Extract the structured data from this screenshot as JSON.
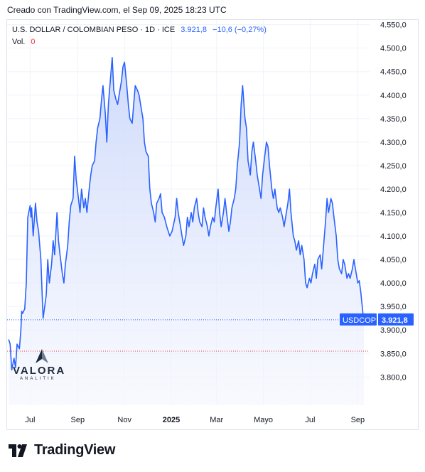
{
  "header": {
    "created_text": "Creado con TradingView.com, el Sep 09, 2025 18:23 UTC"
  },
  "legend": {
    "symbol_text": "U.S. DOLLAR / COLOMBIAN PESO · 1D · ICE",
    "last_value": "3.921,8",
    "change": "−10,6 (−0,27%)",
    "volume_label": "Vol.",
    "volume_value": "0"
  },
  "price_tag": {
    "ticker": "USDCOP",
    "value": "3.921,8",
    "color": "#2962ff"
  },
  "watermark": {
    "name": "VALORA",
    "sub": "ANALITIK"
  },
  "footer": {
    "brand": "TradingView"
  },
  "colors": {
    "line": "#2962ff",
    "area_top": "#c9d6fb",
    "area_bottom": "#f4f6fe",
    "last_price_line": "#2962ff",
    "red_dotted": "#f23645"
  },
  "chart_data": {
    "type": "area",
    "title": "U.S. DOLLAR / COLOMBIAN PESO · 1D · ICE",
    "xlabel": "",
    "ylabel": "",
    "ylim": [
      3740,
      4560
    ],
    "y_ticks": [
      3800,
      3850,
      3900,
      3950,
      4000,
      4050,
      4100,
      4150,
      4200,
      4250,
      4300,
      4350,
      4400,
      4450,
      4500,
      4550
    ],
    "y_tick_labels": [
      "3.800,0",
      "3.850,0",
      "3.900,0",
      "3.950,0",
      "4.000,0",
      "4.050,0",
      "4.100,0",
      "4.150,0",
      "4.200,0",
      "4.250,0",
      "4.300,0",
      "4.350,0",
      "4.400,0",
      "4.450,0",
      "4.500,0",
      "4.550,0"
    ],
    "x_range": [
      "2024-06-01",
      "2025-09-09"
    ],
    "x_ticks": [
      {
        "label": "Jul",
        "date": "2024-07-01",
        "bold": false
      },
      {
        "label": "Sep",
        "date": "2024-09-01",
        "bold": false
      },
      {
        "label": "Nov",
        "date": "2024-11-01",
        "bold": false
      },
      {
        "label": "2025",
        "date": "2025-01-01",
        "bold": true
      },
      {
        "label": "Mar",
        "date": "2025-03-01",
        "bold": false
      },
      {
        "label": "Mayo",
        "date": "2025-05-01",
        "bold": false
      },
      {
        "label": "Jul",
        "date": "2025-07-01",
        "bold": false
      },
      {
        "label": "Sep",
        "date": "2025-09-01",
        "bold": false
      }
    ],
    "red_reference_level": 3855,
    "series": [
      {
        "values": [
          [
            "2024-06-03",
            3880
          ],
          [
            "2024-06-05",
            3870
          ],
          [
            "2024-06-07",
            3815
          ],
          [
            "2024-06-10",
            3840
          ],
          [
            "2024-06-12",
            3820
          ],
          [
            "2024-06-14",
            3870
          ],
          [
            "2024-06-17",
            3860
          ],
          [
            "2024-06-19",
            3900
          ],
          [
            "2024-06-20",
            3940
          ],
          [
            "2024-06-21",
            3935
          ],
          [
            "2024-06-24",
            3945
          ],
          [
            "2024-06-26",
            4000
          ],
          [
            "2024-06-28",
            4140
          ],
          [
            "2024-07-01",
            4165
          ],
          [
            "2024-07-02",
            4140
          ],
          [
            "2024-07-03",
            4160
          ],
          [
            "2024-07-05",
            4100
          ],
          [
            "2024-07-08",
            4170
          ],
          [
            "2024-07-10",
            4130
          ],
          [
            "2024-07-12",
            4110
          ],
          [
            "2024-07-15",
            4050
          ],
          [
            "2024-07-17",
            3960
          ],
          [
            "2024-07-18",
            3925
          ],
          [
            "2024-07-22",
            3975
          ],
          [
            "2024-07-24",
            4050
          ],
          [
            "2024-07-26",
            4000
          ],
          [
            "2024-07-29",
            4040
          ],
          [
            "2024-07-31",
            4090
          ],
          [
            "2024-08-02",
            4060
          ],
          [
            "2024-08-05",
            4150
          ],
          [
            "2024-08-07",
            4090
          ],
          [
            "2024-08-09",
            4060
          ],
          [
            "2024-08-12",
            4020
          ],
          [
            "2024-08-14",
            4000
          ],
          [
            "2024-08-16",
            4040
          ],
          [
            "2024-08-19",
            4080
          ],
          [
            "2024-08-21",
            4130
          ],
          [
            "2024-08-23",
            4165
          ],
          [
            "2024-08-26",
            4180
          ],
          [
            "2024-08-28",
            4270
          ],
          [
            "2024-08-30",
            4220
          ],
          [
            "2024-09-02",
            4180
          ],
          [
            "2024-09-04",
            4150
          ],
          [
            "2024-09-06",
            4200
          ],
          [
            "2024-09-09",
            4160
          ],
          [
            "2024-09-11",
            4180
          ],
          [
            "2024-09-13",
            4150
          ],
          [
            "2024-09-16",
            4200
          ],
          [
            "2024-09-18",
            4230
          ],
          [
            "2024-09-20",
            4250
          ],
          [
            "2024-09-23",
            4260
          ],
          [
            "2024-09-25",
            4300
          ],
          [
            "2024-09-27",
            4330
          ],
          [
            "2024-09-30",
            4350
          ],
          [
            "2024-10-02",
            4390
          ],
          [
            "2024-10-04",
            4420
          ],
          [
            "2024-10-07",
            4360
          ],
          [
            "2024-10-09",
            4300
          ],
          [
            "2024-10-11",
            4380
          ],
          [
            "2024-10-14",
            4440
          ],
          [
            "2024-10-16",
            4480
          ],
          [
            "2024-10-18",
            4410
          ],
          [
            "2024-10-21",
            4390
          ],
          [
            "2024-10-23",
            4380
          ],
          [
            "2024-10-25",
            4400
          ],
          [
            "2024-10-28",
            4430
          ],
          [
            "2024-10-30",
            4460
          ],
          [
            "2024-11-01",
            4470
          ],
          [
            "2024-11-04",
            4420
          ],
          [
            "2024-11-06",
            4380
          ],
          [
            "2024-11-08",
            4350
          ],
          [
            "2024-11-11",
            4340
          ],
          [
            "2024-11-13",
            4380
          ],
          [
            "2024-11-15",
            4420
          ],
          [
            "2024-11-18",
            4410
          ],
          [
            "2024-11-20",
            4400
          ],
          [
            "2024-11-22",
            4380
          ],
          [
            "2024-11-25",
            4350
          ],
          [
            "2024-11-27",
            4300
          ],
          [
            "2024-11-29",
            4280
          ],
          [
            "2024-12-02",
            4270
          ],
          [
            "2024-12-04",
            4200
          ],
          [
            "2024-12-06",
            4170
          ],
          [
            "2024-12-09",
            4150
          ],
          [
            "2024-12-11",
            4130
          ],
          [
            "2024-12-13",
            4170
          ],
          [
            "2024-12-16",
            4180
          ],
          [
            "2024-12-18",
            4190
          ],
          [
            "2024-12-20",
            4150
          ],
          [
            "2024-12-23",
            4140
          ],
          [
            "2024-12-26",
            4120
          ],
          [
            "2024-12-30",
            4100
          ],
          [
            "2025-01-02",
            4110
          ],
          [
            "2025-01-06",
            4140
          ],
          [
            "2025-01-08",
            4180
          ],
          [
            "2025-01-10",
            4150
          ],
          [
            "2025-01-13",
            4120
          ],
          [
            "2025-01-15",
            4100
          ],
          [
            "2025-01-17",
            4080
          ],
          [
            "2025-01-20",
            4100
          ],
          [
            "2025-01-22",
            4140
          ],
          [
            "2025-01-24",
            4120
          ],
          [
            "2025-01-27",
            4150
          ],
          [
            "2025-01-29",
            4130
          ],
          [
            "2025-01-31",
            4160
          ],
          [
            "2025-02-03",
            4180
          ],
          [
            "2025-02-05",
            4150
          ],
          [
            "2025-02-07",
            4130
          ],
          [
            "2025-02-10",
            4120
          ],
          [
            "2025-02-12",
            4160
          ],
          [
            "2025-02-14",
            4140
          ],
          [
            "2025-02-17",
            4120
          ],
          [
            "2025-02-19",
            4100
          ],
          [
            "2025-02-21",
            4120
          ],
          [
            "2025-02-24",
            4140
          ],
          [
            "2025-02-26",
            4130
          ],
          [
            "2025-02-28",
            4160
          ],
          [
            "2025-03-03",
            4200
          ],
          [
            "2025-03-05",
            4150
          ],
          [
            "2025-03-07",
            4120
          ],
          [
            "2025-03-10",
            4150
          ],
          [
            "2025-03-12",
            4180
          ],
          [
            "2025-03-14",
            4150
          ],
          [
            "2025-03-17",
            4110
          ],
          [
            "2025-03-19",
            4130
          ],
          [
            "2025-03-21",
            4160
          ],
          [
            "2025-03-24",
            4180
          ],
          [
            "2025-03-26",
            4200
          ],
          [
            "2025-03-28",
            4250
          ],
          [
            "2025-03-31",
            4300
          ],
          [
            "2025-04-02",
            4380
          ],
          [
            "2025-04-04",
            4420
          ],
          [
            "2025-04-07",
            4350
          ],
          [
            "2025-04-09",
            4330
          ],
          [
            "2025-04-11",
            4260
          ],
          [
            "2025-04-14",
            4230
          ],
          [
            "2025-04-16",
            4280
          ],
          [
            "2025-04-18",
            4300
          ],
          [
            "2025-04-21",
            4260
          ],
          [
            "2025-04-23",
            4230
          ],
          [
            "2025-04-25",
            4210
          ],
          [
            "2025-04-28",
            4180
          ],
          [
            "2025-04-30",
            4230
          ],
          [
            "2025-05-02",
            4260
          ],
          [
            "2025-05-05",
            4300
          ],
          [
            "2025-05-07",
            4290
          ],
          [
            "2025-05-09",
            4250
          ],
          [
            "2025-05-12",
            4200
          ],
          [
            "2025-05-14",
            4180
          ],
          [
            "2025-05-16",
            4200
          ],
          [
            "2025-05-19",
            4160
          ],
          [
            "2025-05-21",
            4150
          ],
          [
            "2025-05-23",
            4160
          ],
          [
            "2025-05-26",
            4140
          ],
          [
            "2025-05-28",
            4120
          ],
          [
            "2025-05-30",
            4140
          ],
          [
            "2025-06-02",
            4170
          ],
          [
            "2025-06-04",
            4200
          ],
          [
            "2025-06-06",
            4150
          ],
          [
            "2025-06-09",
            4100
          ],
          [
            "2025-06-11",
            4090
          ],
          [
            "2025-06-13",
            4070
          ],
          [
            "2025-06-16",
            4090
          ],
          [
            "2025-06-18",
            4060
          ],
          [
            "2025-06-20",
            4080
          ],
          [
            "2025-06-23",
            4050
          ],
          [
            "2025-06-25",
            4000
          ],
          [
            "2025-06-27",
            3990
          ],
          [
            "2025-06-30",
            4010
          ],
          [
            "2025-07-02",
            4000
          ],
          [
            "2025-07-04",
            4020
          ],
          [
            "2025-07-07",
            4040
          ],
          [
            "2025-07-09",
            4010
          ],
          [
            "2025-07-11",
            4050
          ],
          [
            "2025-07-14",
            4060
          ],
          [
            "2025-07-16",
            4030
          ],
          [
            "2025-07-18",
            4070
          ],
          [
            "2025-07-21",
            4130
          ],
          [
            "2025-07-23",
            4180
          ],
          [
            "2025-07-25",
            4150
          ],
          [
            "2025-07-28",
            4180
          ],
          [
            "2025-07-30",
            4170
          ],
          [
            "2025-08-01",
            4140
          ],
          [
            "2025-08-04",
            4100
          ],
          [
            "2025-08-06",
            4050
          ],
          [
            "2025-08-08",
            4030
          ],
          [
            "2025-08-11",
            4020
          ],
          [
            "2025-08-13",
            4050
          ],
          [
            "2025-08-15",
            4040
          ],
          [
            "2025-08-18",
            4010
          ],
          [
            "2025-08-20",
            4020
          ],
          [
            "2025-08-22",
            4010
          ],
          [
            "2025-08-25",
            4030
          ],
          [
            "2025-08-27",
            4050
          ],
          [
            "2025-08-29",
            4030
          ],
          [
            "2025-09-01",
            4000
          ],
          [
            "2025-09-03",
            4005
          ],
          [
            "2025-09-05",
            3980
          ],
          [
            "2025-09-08",
            3932
          ],
          [
            "2025-09-09",
            3921.8
          ]
        ]
      }
    ]
  }
}
